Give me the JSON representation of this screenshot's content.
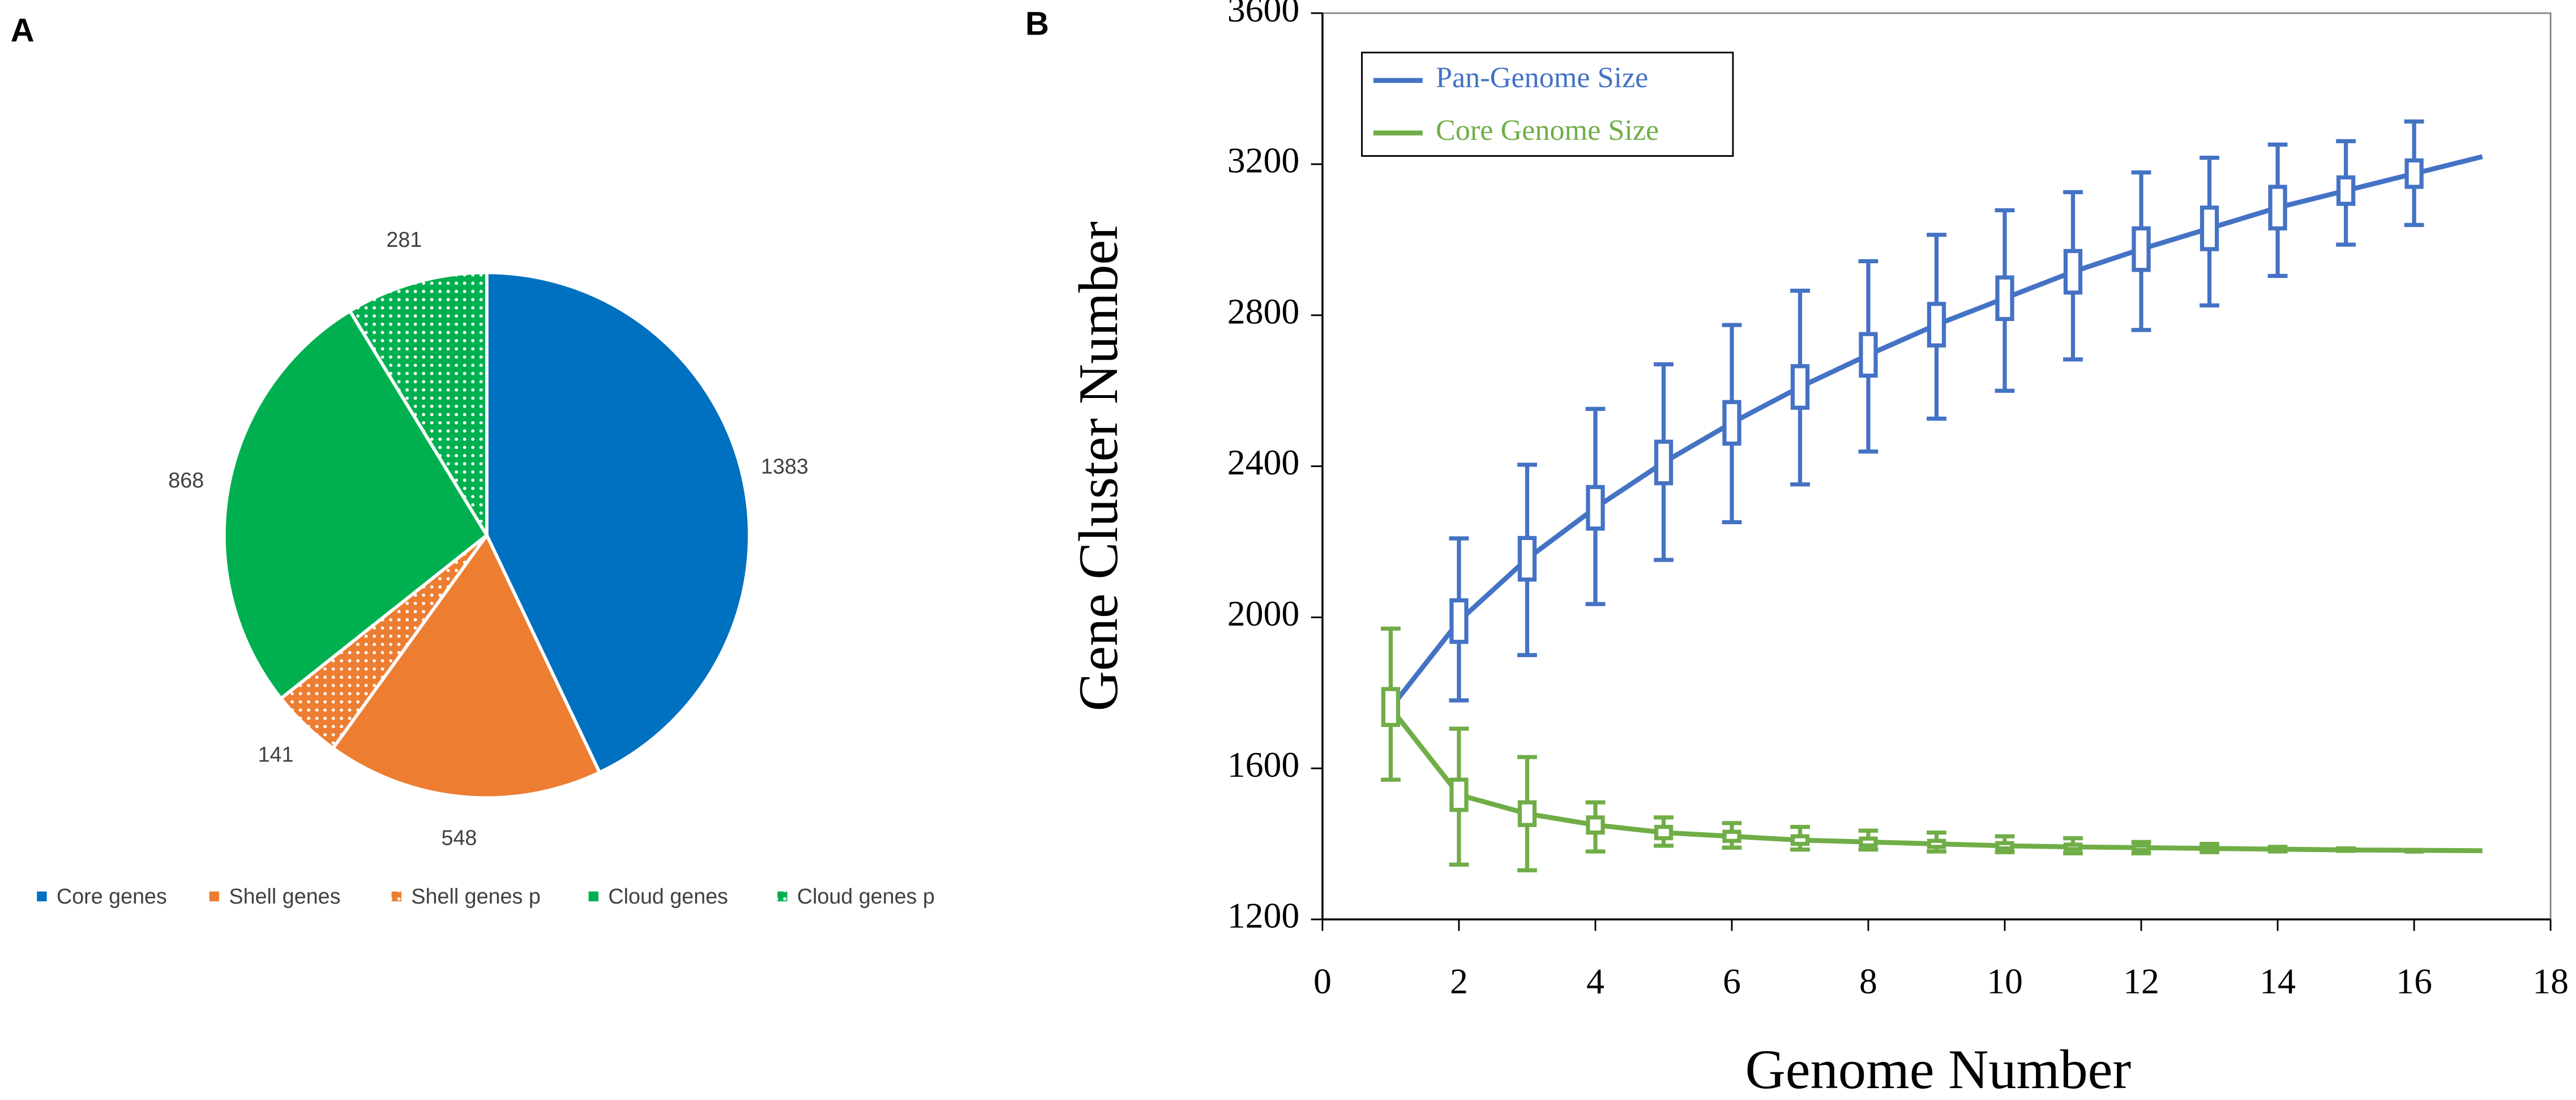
{
  "chart_data": [
    {
      "type": "pie",
      "panel_label": "A",
      "categories": [
        "Core genes",
        "Shell genes",
        "Shell genes p",
        "Cloud genes",
        "Cloud genes p"
      ],
      "values": [
        1383,
        548,
        141,
        868,
        281
      ],
      "colors": [
        "#0070c0",
        "#ed7d31",
        "#ed7d31",
        "#00b050",
        "#00b050"
      ],
      "patterned": [
        false,
        false,
        true,
        false,
        true
      ],
      "legend": "bottom"
    },
    {
      "type": "line",
      "panel_label": "B",
      "xlabel": "Genome Number",
      "ylabel": "Gene Cluster Number",
      "x": [
        1,
        2,
        3,
        4,
        5,
        6,
        7,
        8,
        9,
        10,
        11,
        12,
        13,
        14,
        15,
        16,
        17
      ],
      "xlim": [
        0,
        18
      ],
      "xticks": [
        0,
        2,
        4,
        6,
        8,
        10,
        12,
        14,
        16,
        18
      ],
      "ylim": [
        1200,
        3600
      ],
      "yticks": [
        1200,
        1600,
        2000,
        2400,
        2800,
        3200,
        3600
      ],
      "legend": "top-left",
      "series": [
        {
          "name": "Pan-Genome Size",
          "color": "#4472c4",
          "values": [
            1760,
            1990,
            2155,
            2290,
            2410,
            2515,
            2610,
            2695,
            2775,
            2845,
            2915,
            2975,
            3030,
            3085,
            3130,
            3175,
            3220
          ],
          "box_low": [
            null,
            1935,
            2100,
            2235,
            2355,
            2460,
            2555,
            2640,
            2720,
            2790,
            2860,
            2920,
            2975,
            3030,
            3095,
            3140,
            null
          ],
          "box_high": [
            null,
            2045,
            2210,
            2345,
            2465,
            2570,
            2665,
            2750,
            2830,
            2900,
            2970,
            3030,
            3085,
            3140,
            3165,
            3210,
            null
          ],
          "whisker_low": [
            null,
            1780,
            1900,
            2035,
            2152,
            2252,
            2352,
            2439,
            2526,
            2600,
            2683,
            2761,
            2826,
            2904,
            2987,
            3039,
            null
          ],
          "whisker_high": [
            null,
            2209,
            2404,
            2552,
            2670,
            2774,
            2865,
            2943,
            3013,
            3078,
            3126,
            3178,
            3217,
            3252,
            3261,
            3313,
            null
          ]
        },
        {
          "name": "Core Genome Size",
          "color": "#70ad47",
          "values": [
            1760,
            1530,
            1480,
            1450,
            1430,
            1420,
            1410,
            1405,
            1400,
            1395,
            1392,
            1390,
            1388,
            1386,
            1384,
            1383,
            1382
          ],
          "box_low": [
            1715,
            1490,
            1450,
            1430,
            1415,
            1408,
            1400,
            1396,
            1392,
            1388,
            1386,
            1384,
            1383,
            1382,
            1382,
            1382,
            null
          ],
          "box_high": [
            1810,
            1570,
            1510,
            1470,
            1445,
            1432,
            1420,
            1414,
            1408,
            1402,
            1398,
            1396,
            1393,
            1390,
            1386,
            1384,
            null
          ],
          "whisker_low": [
            1570,
            1345,
            1330,
            1380,
            1395,
            1390,
            1385,
            1385,
            1380,
            1378,
            1375,
            1375,
            1378,
            1380,
            1382,
            1382,
            null
          ],
          "whisker_high": [
            1970,
            1705,
            1630,
            1510,
            1470,
            1455,
            1445,
            1435,
            1430,
            1420,
            1415,
            1405,
            1400,
            1392,
            1388,
            1384,
            null
          ]
        }
      ]
    }
  ]
}
